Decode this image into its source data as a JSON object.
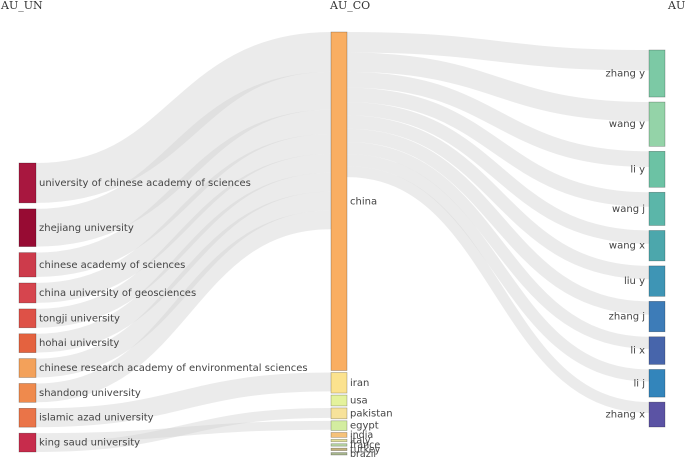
{
  "columns": [
    {
      "key": "au_un",
      "title": "AU_UN"
    },
    {
      "key": "au_co",
      "title": "AU_CO"
    },
    {
      "key": "au",
      "title": "AU"
    }
  ],
  "nodes": {
    "au_un": [
      {
        "label": "university of chinese academy of sciences",
        "value": 36,
        "color": "#a8173f"
      },
      {
        "label": "zhejiang university",
        "value": 34,
        "color": "#970b33"
      },
      {
        "label": "chinese academy of sciences",
        "value": 22,
        "color": "#cd3b4b"
      },
      {
        "label": "china university of geosciences",
        "value": 18,
        "color": "#d6454e"
      },
      {
        "label": "tongji university",
        "value": 17,
        "color": "#de5147"
      },
      {
        "label": "hohai university",
        "value": 17,
        "color": "#e4623f"
      },
      {
        "label": "chinese research academy of environmental sciences",
        "value": 17,
        "color": "#f3a15a"
      },
      {
        "label": "shandong university",
        "value": 17,
        "color": "#ef8a4d"
      },
      {
        "label": "islamic azad university",
        "value": 17,
        "color": "#ea7448"
      },
      {
        "label": "king saud university",
        "value": 17,
        "color": "#c72c4c"
      }
    ],
    "au_co": [
      {
        "label": "china",
        "value": 280,
        "color": "#f9ae62"
      },
      {
        "label": "iran",
        "value": 17,
        "color": "#fbe28e"
      },
      {
        "label": "usa",
        "value": 9,
        "color": "#e4f29c"
      },
      {
        "label": "pakistan",
        "value": 9,
        "color": "#f7e29a"
      },
      {
        "label": "egypt",
        "value": 8,
        "color": "#d3eda0"
      },
      {
        "label": "india",
        "value": 4,
        "color": "#f6c27a"
      },
      {
        "label": "italy",
        "value": 2,
        "color": "#e2e09a"
      },
      {
        "label": "france",
        "value": 2,
        "color": "#b7d3a0"
      },
      {
        "label": "turkey",
        "value": 2,
        "color": "#c4b27c"
      },
      {
        "label": "brazil",
        "value": 2,
        "color": "#a8b68e"
      }
    ],
    "au": [
      {
        "label": "zhang y",
        "value": 17,
        "color": "#7cc9a5"
      },
      {
        "label": "wang y",
        "value": 16,
        "color": "#94d3a8"
      },
      {
        "label": "li y",
        "value": 13,
        "color": "#6cc2a4"
      },
      {
        "label": "wang j",
        "value": 12,
        "color": "#5bb6a9"
      },
      {
        "label": "wang x",
        "value": 11,
        "color": "#4ca7ac"
      },
      {
        "label": "liu y",
        "value": 11,
        "color": "#3e95b5"
      },
      {
        "label": "zhang j",
        "value": 11,
        "color": "#3d7cb8"
      },
      {
        "label": "li x",
        "value": 10,
        "color": "#4765ab"
      },
      {
        "label": "li j",
        "value": 10,
        "color": "#3385bb"
      },
      {
        "label": "zhang x",
        "value": 9,
        "color": "#5b53a4"
      }
    ]
  },
  "links_left": [
    [
      "university of chinese academy of sciences",
      "china",
      36
    ],
    [
      "zhejiang university",
      "china",
      34
    ],
    [
      "chinese academy of sciences",
      "china",
      22
    ],
    [
      "china university of geosciences",
      "china",
      18
    ],
    [
      "tongji university",
      "china",
      17
    ],
    [
      "hohai university",
      "china",
      17
    ],
    [
      "chinese research academy of environmental sciences",
      "china",
      17
    ],
    [
      "shandong university",
      "china",
      17
    ],
    [
      "islamic azad university",
      "iran",
      17
    ],
    [
      "king saud university",
      "egypt",
      8
    ],
    [
      "king saud university",
      "pakistan",
      9
    ]
  ],
  "links_right": [
    [
      "china",
      "zhang y",
      17
    ],
    [
      "china",
      "wang y",
      16
    ],
    [
      "china",
      "li y",
      13
    ],
    [
      "china",
      "wang j",
      12
    ],
    [
      "china",
      "wang x",
      11
    ],
    [
      "china",
      "liu y",
      11
    ],
    [
      "china",
      "zhang j",
      11
    ],
    [
      "china",
      "li x",
      10
    ],
    [
      "china",
      "li j",
      10
    ],
    [
      "china",
      "zhang x",
      9
    ]
  ],
  "link_color": "#d3d3d3"
}
